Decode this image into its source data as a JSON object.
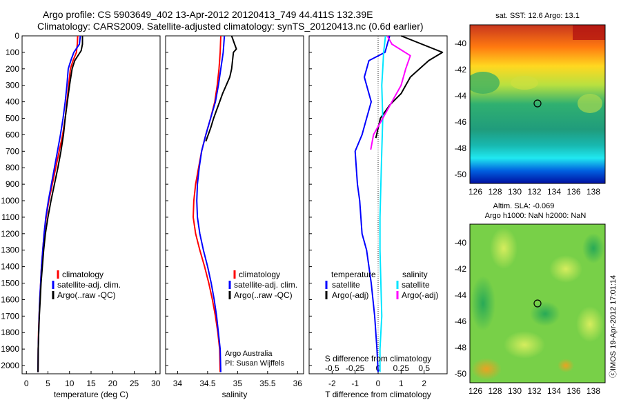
{
  "header": {
    "title_line1": "Argo profile: CS 5903649_402 13-Apr-2012 20120413_749 44.411S 132.39E",
    "title_line2": "Climatology: CARS2009. Satellite-adjusted climatology: synTS_20120413.nc (0.6d earlier)"
  },
  "colors": {
    "climatology": "#ff0000",
    "satellite": "#0000ff",
    "argo": "#000000",
    "salinity_satellite": "#00e5ff",
    "salinity_argo": "#ff00ff"
  },
  "depth_axis": {
    "ylim": [
      0,
      2050
    ],
    "ticks": [
      "0",
      "100",
      "200",
      "300",
      "400",
      "500",
      "600",
      "700",
      "800",
      "900",
      "1000",
      "1100",
      "1200",
      "1300",
      "1400",
      "1500",
      "1600",
      "1700",
      "1800",
      "1900",
      "2000"
    ]
  },
  "panel_temperature": {
    "xlabel": "temperature (deg C)",
    "xlim": [
      -1,
      31
    ],
    "xticks": [
      "0",
      "5",
      "10",
      "15",
      "20",
      "25",
      "30"
    ],
    "legend": [
      "climatology",
      "satellite-adj. clim.",
      "Argo(..raw -QC)"
    ]
  },
  "panel_salinity": {
    "xlabel": "salinity",
    "xlim": [
      33.8,
      36.1
    ],
    "xticks": [
      "34",
      "34.5",
      "35",
      "35.5",
      "36"
    ],
    "legend": [
      "climatology",
      "satellite-adj. clim.",
      "Argo(..raw -QC)"
    ],
    "note_line1": "Argo Australia",
    "note_line2": "PI: Susan Wijffels"
  },
  "panel_difference": {
    "xlabel_bottom": "T difference from climatology",
    "xlabel_top": "S difference from climatology",
    "xticks_bottom": [
      "-2",
      "-1",
      "0",
      "1",
      "2"
    ],
    "xticks_top": [
      "-0.5",
      "-0.25",
      "0",
      "0.25",
      "0.5"
    ],
    "legend_temperature_title": "temperature",
    "legend_temperature": [
      "satellite",
      "Argo(-adj)"
    ],
    "legend_salinity_title": "salinity",
    "legend_salinity": [
      "satellite",
      "Argo(-adj)"
    ]
  },
  "map_sst": {
    "title": "sat. SST: 12.6 Argo: 13.1",
    "yticks": [
      "-40",
      "-42",
      "-44",
      "-46",
      "-48",
      "-50"
    ],
    "xticks": [
      "126",
      "128",
      "130",
      "132",
      "134",
      "136",
      "138"
    ]
  },
  "map_sla": {
    "title_line1": "Altim. SLA: -0.069",
    "title_line2": "Argo h1000: NaN h2000: NaN",
    "yticks": [
      "-40",
      "-42",
      "-44",
      "-46",
      "-48",
      "-50"
    ],
    "xticks": [
      "126",
      "128",
      "130",
      "132",
      "134",
      "136",
      "138"
    ]
  },
  "credit": "ⓒIMOS 19-Apr-2012 17:01:14",
  "chart_data": [
    {
      "type": "line",
      "title": "",
      "xlabel": "temperature (deg C)",
      "ylabel": "",
      "xlim": [
        -1,
        31
      ],
      "ylim": [
        0,
        2050
      ],
      "y_reversed": true,
      "series": [
        {
          "name": "climatology",
          "x": [
            11.9,
            11.8,
            11.6,
            10.8,
            10.2,
            9.8,
            9.4,
            9.0,
            8.4,
            7.6,
            6.8,
            6.0,
            5.2,
            4.6,
            4.1,
            3.8,
            3.5,
            3.3,
            3.1,
            2.95,
            2.8,
            2.75,
            2.7
          ],
          "y": [
            0,
            50,
            100,
            150,
            200,
            300,
            400,
            500,
            600,
            700,
            800,
            900,
            1000,
            1100,
            1200,
            1300,
            1400,
            1500,
            1600,
            1700,
            1800,
            1900,
            2040
          ]
        },
        {
          "name": "satellite-adj. clim.",
          "x": [
            12.5,
            12.3,
            11.0,
            10.3,
            9.7,
            9.4,
            9.0,
            8.5,
            7.9,
            7.2,
            6.5,
            5.8,
            5.1,
            4.5,
            4.1,
            3.8,
            3.5,
            3.3,
            3.1,
            2.95,
            2.85,
            2.75,
            2.7
          ],
          "y": [
            0,
            50,
            100,
            150,
            200,
            300,
            400,
            500,
            600,
            700,
            800,
            900,
            1000,
            1100,
            1200,
            1300,
            1400,
            1500,
            1600,
            1700,
            1800,
            1900,
            2040
          ]
        },
        {
          "name": "Argo(..raw -QC)",
          "x": [
            13.0,
            13.0,
            12.7,
            11.2,
            10.6,
            10.0,
            9.5,
            9.0,
            8.6,
            8.0,
            7.3,
            6.5,
            5.7,
            5.0,
            4.4,
            4.0,
            3.7,
            3.4,
            3.2,
            3.0,
            2.85,
            2.75,
            2.7
          ],
          "y": [
            0,
            50,
            90,
            150,
            200,
            300,
            400,
            500,
            600,
            700,
            800,
            900,
            1000,
            1100,
            1200,
            1300,
            1400,
            1500,
            1600,
            1700,
            1800,
            1900,
            2040
          ]
        }
      ]
    },
    {
      "type": "line",
      "title": "",
      "xlabel": "salinity",
      "ylabel": "",
      "xlim": [
        33.8,
        36.1
      ],
      "ylim": [
        0,
        2050
      ],
      "y_reversed": true,
      "series": [
        {
          "name": "climatology",
          "x": [
            34.72,
            34.71,
            34.69,
            34.66,
            34.62,
            34.55,
            34.47,
            34.4,
            34.35,
            34.3,
            34.27,
            34.26,
            34.3,
            34.37,
            34.45,
            34.52,
            34.58,
            34.63,
            34.67,
            34.7,
            34.71
          ],
          "y": [
            0,
            100,
            200,
            300,
            400,
            500,
            600,
            700,
            800,
            900,
            1000,
            1100,
            1200,
            1300,
            1400,
            1500,
            1600,
            1700,
            1800,
            1900,
            2040
          ]
        },
        {
          "name": "satellite-adj. clim.",
          "x": [
            34.78,
            34.76,
            34.72,
            34.68,
            34.63,
            34.55,
            34.47,
            34.4,
            34.36,
            34.33,
            34.32,
            34.33,
            34.37,
            34.43,
            34.5,
            34.56,
            34.61,
            34.65,
            34.68,
            34.71,
            34.72
          ],
          "y": [
            0,
            100,
            200,
            300,
            400,
            500,
            600,
            700,
            800,
            900,
            1000,
            1100,
            1200,
            1300,
            1400,
            1500,
            1600,
            1700,
            1800,
            1900,
            2040
          ]
        },
        {
          "name": "Argo(..raw -QC)",
          "x": [
            34.9,
            34.95,
            34.98,
            34.93,
            34.9,
            34.87,
            34.75,
            34.7,
            34.65,
            34.6,
            34.55,
            34.47
          ],
          "y": [
            0,
            50,
            80,
            100,
            200,
            250,
            350,
            400,
            450,
            500,
            560,
            640
          ]
        }
      ]
    },
    {
      "type": "line",
      "title": "",
      "xlabel": "T difference from climatology",
      "ylabel": "",
      "ylim": [
        0,
        2050
      ],
      "y_reversed": true,
      "series": [
        {
          "name": "temperature satellite",
          "x": [
            0.5,
            0.3,
            -0.4,
            -0.6,
            -0.3,
            -0.5,
            -0.7,
            -1.0,
            -0.9,
            -0.8,
            -0.7,
            -0.5,
            -0.3,
            -0.15,
            -0.05,
            0.0
          ],
          "y": [
            0,
            100,
            150,
            250,
            400,
            500,
            600,
            700,
            900,
            1000,
            1200,
            1300,
            1500,
            1700,
            1900,
            2040
          ]
        },
        {
          "name": "temperature Argo(-adj)",
          "x": [
            1.0,
            2.8,
            2.2,
            1.4,
            1.0,
            0.5,
            0.1,
            -0.1
          ],
          "y": [
            0,
            100,
            150,
            250,
            350,
            420,
            500,
            620
          ]
        },
        {
          "name": "salinity satellite",
          "x": [
            0.08,
            0.06,
            0.05,
            0.04,
            0.05,
            0.04,
            0.03,
            0.02,
            0.02,
            0.03,
            0.04,
            0.03,
            0.02,
            0.02
          ],
          "y": [
            0,
            100,
            200,
            300,
            500,
            700,
            900,
            1100,
            1300,
            1500,
            1700,
            1800,
            1900,
            2040
          ]
        },
        {
          "name": "salinity Argo(-adj)",
          "x": [
            0.1,
            0.15,
            0.35,
            0.3,
            0.25,
            0.15,
            0.05,
            -0.05,
            -0.08
          ],
          "y": [
            0,
            50,
            120,
            200,
            300,
            400,
            500,
            600,
            690
          ]
        }
      ]
    }
  ]
}
